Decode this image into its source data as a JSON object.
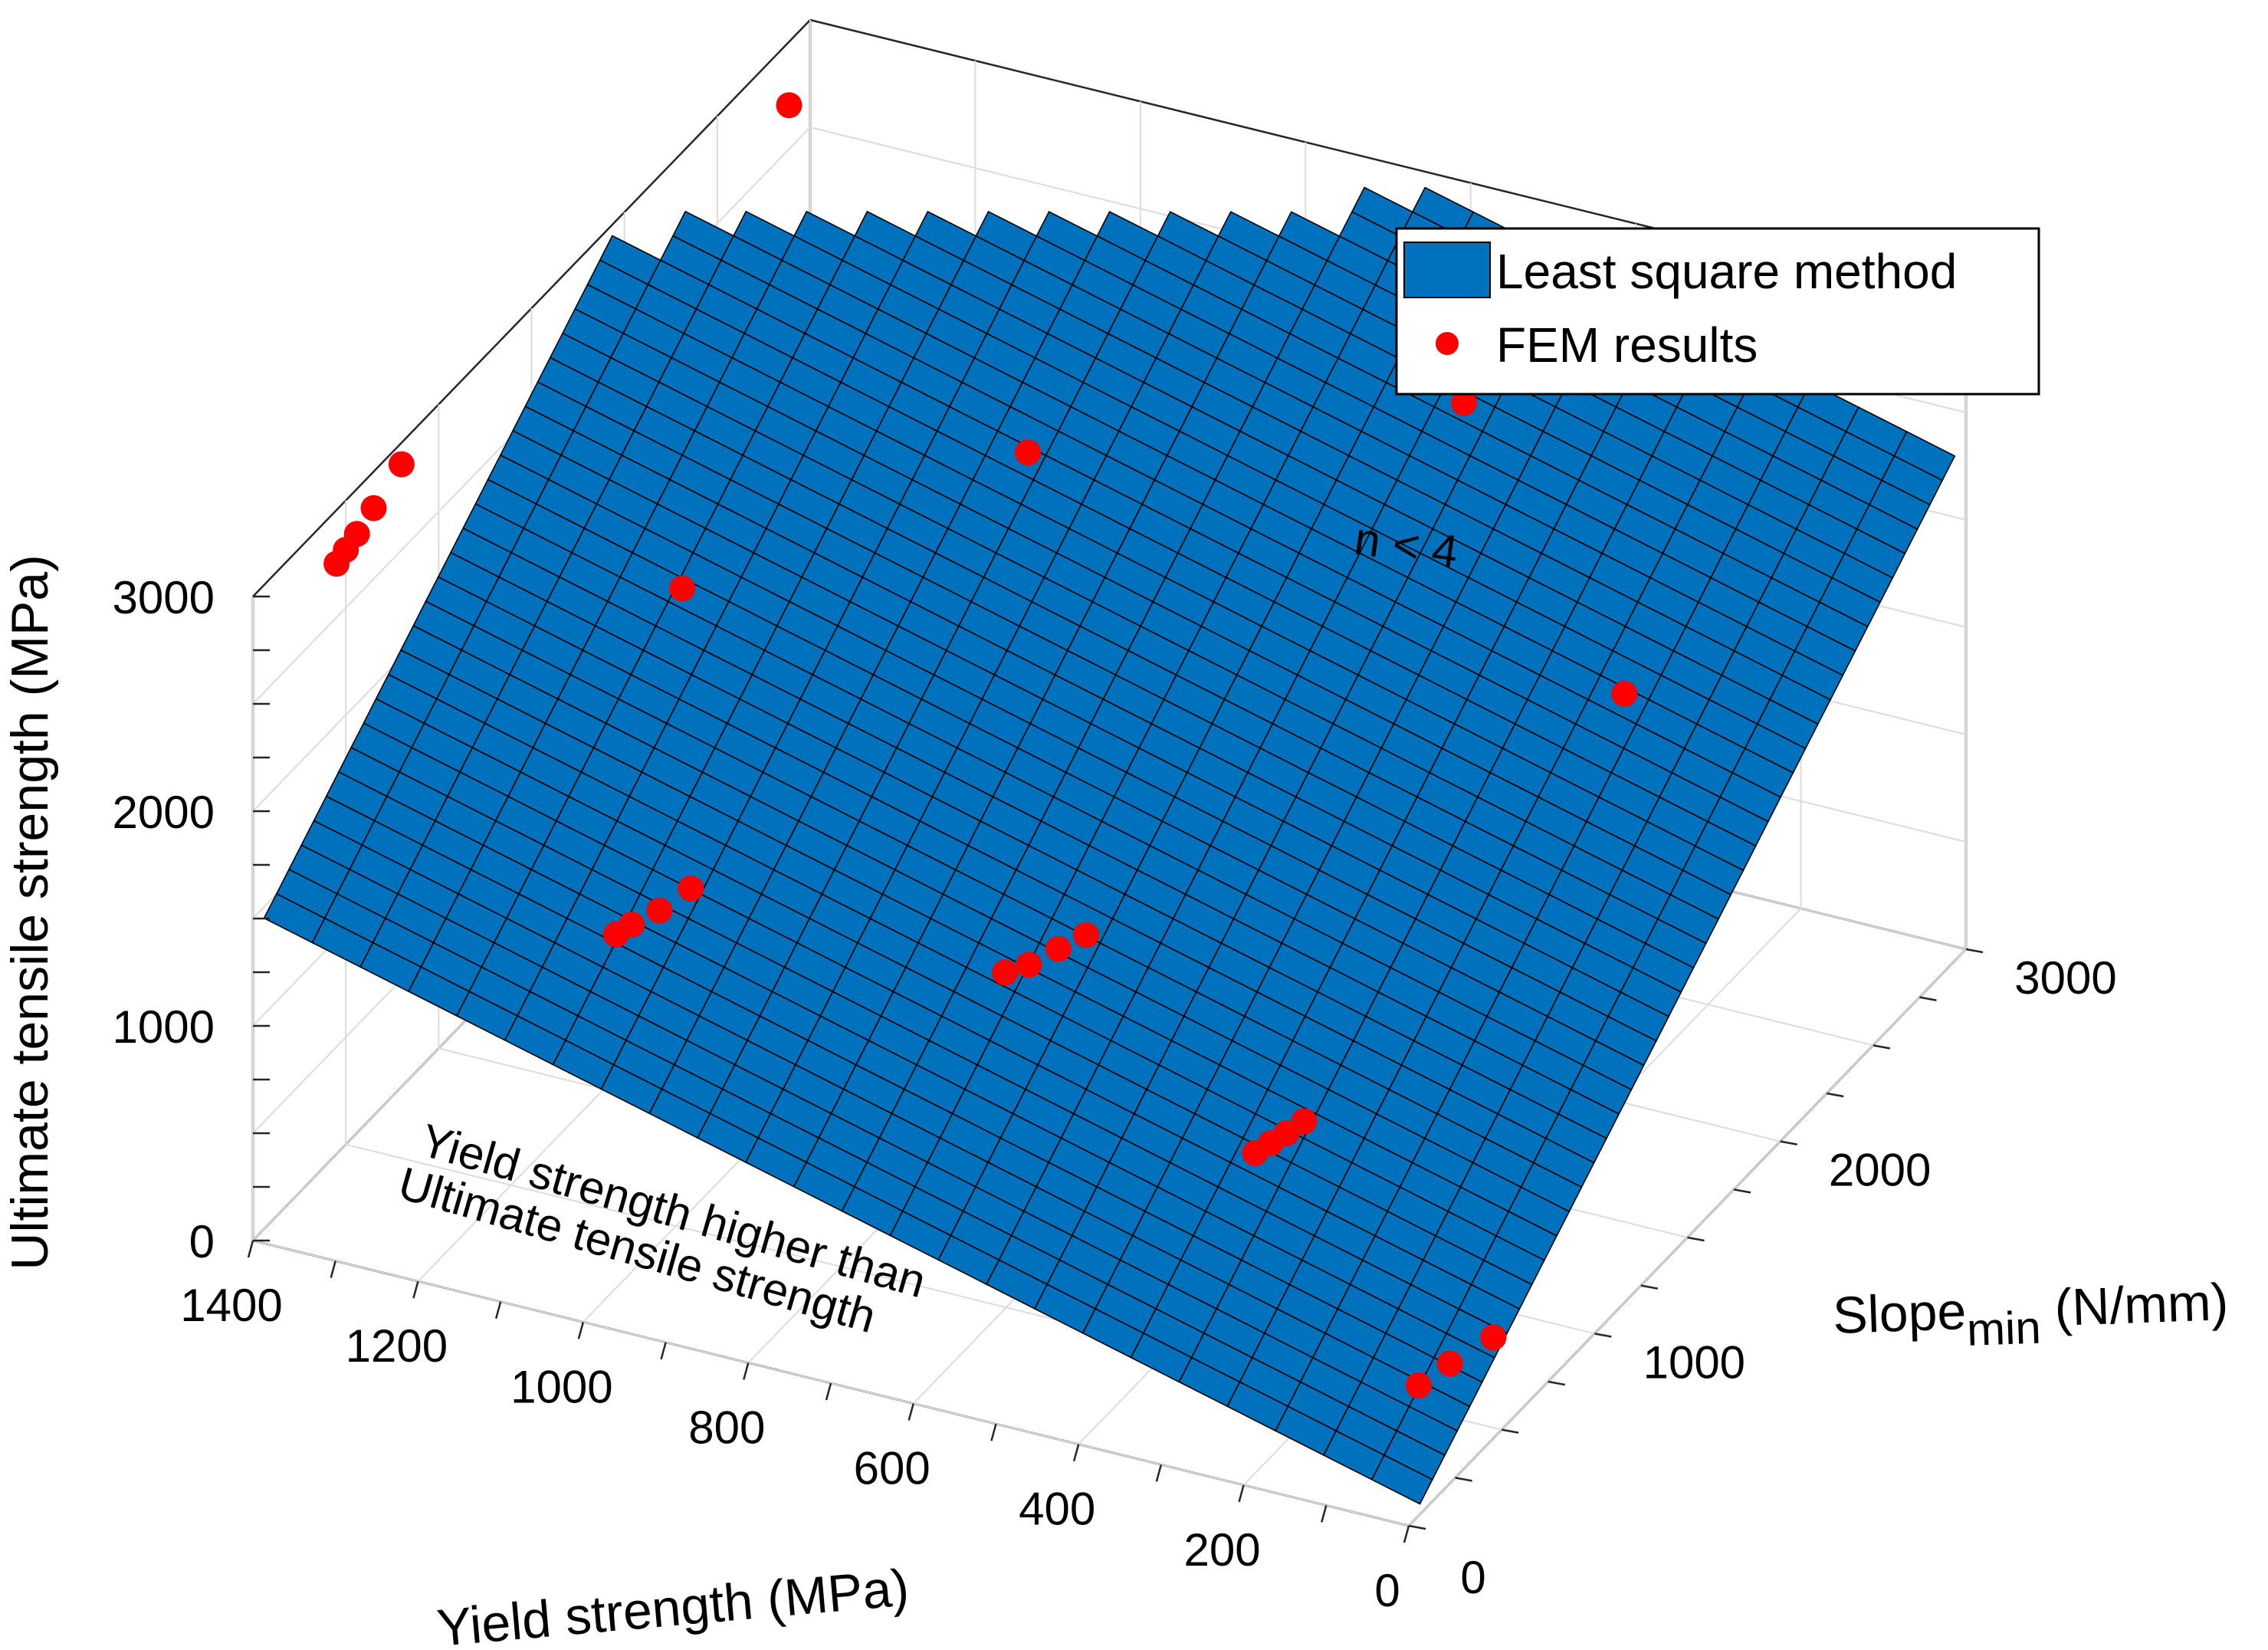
{
  "chart_data": {
    "type": "surface3d-scatter",
    "title": "",
    "xlabel": "Yield strength (MPa)",
    "ylabel_main": "Slope",
    "ylabel_sub": "min",
    "ylabel_unit": " (N/mm)",
    "zlabel": "Ultimate tensile strength (MPa)",
    "xlim": [
      0,
      1400
    ],
    "ylim": [
      0,
      3000
    ],
    "zlim": [
      0,
      3000
    ],
    "x_ticks": [
      "0",
      "200",
      "400",
      "600",
      "800",
      "1000",
      "1200",
      "1400"
    ],
    "y_ticks": [
      "1000",
      "2000",
      "3000"
    ],
    "z_ticks": [
      "0",
      "1000",
      "2000",
      "3000"
    ],
    "x_tick_values": [
      0,
      200,
      400,
      600,
      800,
      1000,
      1200,
      1400
    ],
    "y_tick_values": [
      1000,
      2000,
      3000
    ],
    "z_tick_values": [
      0,
      1000,
      2000,
      3000
    ],
    "grid": true,
    "legend": {
      "position": "top-right",
      "entries": [
        {
          "label": "Least square method",
          "type": "surface",
          "color": "#0072bd"
        },
        {
          "label": "FEM results",
          "type": "marker",
          "color": "#ff0000"
        }
      ]
    },
    "annotations": [
      {
        "text": "n < 4"
      },
      {
        "text_line1": "Yield strength higher than",
        "text_line2": "Ultimate tensile strength"
      }
    ],
    "surface": {
      "name": "Least square method",
      "color": "#0072bd",
      "edge_color": "#000000",
      "x_range": [
        0,
        1400
      ],
      "y_range": [
        0,
        3000
      ],
      "z_model": "UTS = YS + 0.8 * Slope_min"
    },
    "fem_points": [
      {
        "x": 1340,
        "y": 2620,
        "z": 3000
      },
      {
        "x": 1400,
        "y": 800,
        "z": 2900
      },
      {
        "x": 1400,
        "y": 650,
        "z": 2830
      },
      {
        "x": 1400,
        "y": 560,
        "z": 2790
      },
      {
        "x": 1400,
        "y": 500,
        "z": 2770
      },
      {
        "x": 1400,
        "y": 450,
        "z": 2750
      },
      {
        "x": 900,
        "y": 1950,
        "z": 2400
      },
      {
        "x": 500,
        "y": 2520,
        "z": 2500
      },
      {
        "x": 1000,
        "y": 580,
        "z": 1500
      },
      {
        "x": 1020,
        "y": 500,
        "z": 1450
      },
      {
        "x": 1040,
        "y": 440,
        "z": 1420
      },
      {
        "x": 1050,
        "y": 400,
        "z": 1400
      },
      {
        "x": 1150,
        "y": 1200,
        "z": 2200
      },
      {
        "x": 200,
        "y": 2050,
        "z": 1850
      },
      {
        "x": 600,
        "y": 930,
        "z": 1350
      },
      {
        "x": 620,
        "y": 870,
        "z": 1320
      },
      {
        "x": 640,
        "y": 800,
        "z": 1290
      },
      {
        "x": 660,
        "y": 760,
        "z": 1270
      },
      {
        "x": 300,
        "y": 770,
        "z": 910
      },
      {
        "x": 310,
        "y": 720,
        "z": 890
      },
      {
        "x": 320,
        "y": 680,
        "z": 870
      },
      {
        "x": 330,
        "y": 640,
        "z": 850
      },
      {
        "x": 10,
        "y": 500,
        "z": 420
      },
      {
        "x": 40,
        "y": 400,
        "z": 360
      },
      {
        "x": 60,
        "y": 320,
        "z": 310
      }
    ]
  }
}
